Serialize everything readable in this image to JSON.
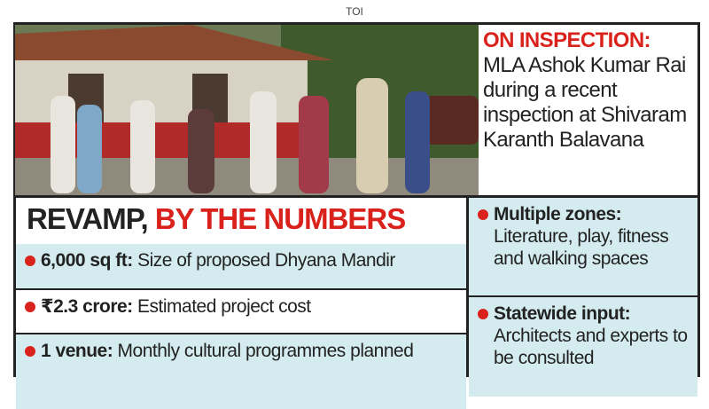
{
  "source": "TOI",
  "caption": {
    "label": "ON INSPECTION:",
    "text": "MLA Ashok Kumar Rai during a recent inspection at Shivaram Karanth Balavana"
  },
  "heading": {
    "part1": "REVAMP,",
    "part2": "BY THE NUMBERS"
  },
  "left_items": [
    {
      "label": "6,000 sq ft:",
      "text": "Size of proposed Dhyana Mandir"
    },
    {
      "label": "₹2.3 crore:",
      "text": "Estimated project cost"
    },
    {
      "label": "1 venue:",
      "text": "Monthly cultural programmes planned"
    }
  ],
  "right_items": [
    {
      "label": "Multiple zones:",
      "text": "Literature, play, fitness and walking spaces"
    },
    {
      "label": "Statewide input:",
      "text": "Architects and experts to be consulted"
    }
  ]
}
